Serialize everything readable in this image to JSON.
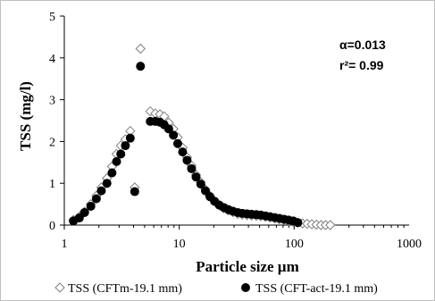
{
  "chart_data": {
    "type": "scatter",
    "xlabel": "Particle size  µm",
    "ylabel": "TSS  (mg/l)",
    "x_scale": "log",
    "xlim": [
      1,
      1000
    ],
    "ylim": [
      0,
      5
    ],
    "x_ticks": [
      "1",
      "10",
      "100",
      "1000"
    ],
    "y_ticks": [
      "0",
      "1",
      "2",
      "3",
      "4",
      "5"
    ],
    "grid": false,
    "legend_position": "bottom",
    "annotations": [
      "α=0.013",
      "r²= 0.99"
    ],
    "series": [
      {
        "name": "TSS (CFTm-19.1 mm)",
        "marker": "open-diamond",
        "color": "#7f7f7f",
        "points": [
          [
            1.2,
            0.12
          ],
          [
            1.35,
            0.2
          ],
          [
            1.5,
            0.32
          ],
          [
            1.7,
            0.5
          ],
          [
            1.9,
            0.7
          ],
          [
            2.1,
            0.9
          ],
          [
            2.35,
            1.12
          ],
          [
            2.6,
            1.4
          ],
          [
            2.85,
            1.7
          ],
          [
            3.1,
            1.9
          ],
          [
            3.4,
            2.05
          ],
          [
            3.75,
            2.25
          ],
          [
            4.1,
            0.9
          ],
          [
            4.6,
            4.22
          ],
          [
            5.6,
            2.72
          ],
          [
            6.2,
            2.67
          ],
          [
            6.8,
            2.65
          ],
          [
            7.4,
            2.6
          ],
          [
            8.1,
            2.45
          ],
          [
            8.9,
            2.3
          ],
          [
            9.7,
            2.1
          ],
          [
            10.7,
            1.85
          ],
          [
            11.7,
            1.62
          ],
          [
            12.8,
            1.42
          ],
          [
            14,
            1.2
          ],
          [
            15.4,
            1.02
          ],
          [
            16.9,
            0.85
          ],
          [
            18.5,
            0.7
          ],
          [
            20.3,
            0.57
          ],
          [
            22.3,
            0.47
          ],
          [
            24.4,
            0.4
          ],
          [
            26.8,
            0.35
          ],
          [
            29.4,
            0.31
          ],
          [
            32.3,
            0.27
          ],
          [
            35.4,
            0.25
          ],
          [
            38.9,
            0.24
          ],
          [
            42.6,
            0.23
          ],
          [
            46.8,
            0.22
          ],
          [
            51.3,
            0.21
          ],
          [
            56.3,
            0.2
          ],
          [
            61.8,
            0.18
          ],
          [
            67.8,
            0.16
          ],
          [
            74.4,
            0.14
          ],
          [
            81.6,
            0.12
          ],
          [
            89.5,
            0.1
          ],
          [
            98.2,
            0.08
          ],
          [
            107.7,
            0.06
          ],
          [
            118.2,
            0.04
          ],
          [
            129.7,
            0.03
          ],
          [
            142.3,
            0.02
          ],
          [
            156.1,
            0.01
          ],
          [
            171.3,
            0.0
          ],
          [
            188,
            0.0
          ],
          [
            206.3,
            0.0
          ]
        ]
      },
      {
        "name": "TSS (CFT-act-19.1 mm)",
        "marker": "filled-circle",
        "color": "#000000",
        "points": [
          [
            1.2,
            0.1
          ],
          [
            1.35,
            0.17
          ],
          [
            1.5,
            0.3
          ],
          [
            1.7,
            0.45
          ],
          [
            1.9,
            0.63
          ],
          [
            2.1,
            0.82
          ],
          [
            2.35,
            1.0
          ],
          [
            2.6,
            1.25
          ],
          [
            2.85,
            1.52
          ],
          [
            3.1,
            1.7
          ],
          [
            3.4,
            1.9
          ],
          [
            3.75,
            2.08
          ],
          [
            4.1,
            0.8
          ],
          [
            4.6,
            3.8
          ],
          [
            5.6,
            2.48
          ],
          [
            6.2,
            2.48
          ],
          [
            6.8,
            2.46
          ],
          [
            7.4,
            2.4
          ],
          [
            8.1,
            2.3
          ],
          [
            8.9,
            2.15
          ],
          [
            9.7,
            1.95
          ],
          [
            10.7,
            1.75
          ],
          [
            11.7,
            1.55
          ],
          [
            12.8,
            1.35
          ],
          [
            14,
            1.15
          ],
          [
            15.4,
            0.98
          ],
          [
            16.9,
            0.82
          ],
          [
            18.5,
            0.68
          ],
          [
            20.3,
            0.57
          ],
          [
            22.3,
            0.48
          ],
          [
            24.4,
            0.42
          ],
          [
            26.8,
            0.37
          ],
          [
            29.4,
            0.33
          ],
          [
            32.3,
            0.3
          ],
          [
            35.4,
            0.28
          ],
          [
            38.9,
            0.27
          ],
          [
            42.6,
            0.26
          ],
          [
            46.8,
            0.25
          ],
          [
            51.3,
            0.24
          ],
          [
            56.3,
            0.22
          ],
          [
            61.8,
            0.2
          ],
          [
            67.8,
            0.18
          ],
          [
            74.4,
            0.16
          ],
          [
            81.6,
            0.14
          ],
          [
            89.5,
            0.12
          ],
          [
            98.2,
            0.1
          ],
          [
            107.7,
            0.06
          ]
        ]
      }
    ]
  }
}
